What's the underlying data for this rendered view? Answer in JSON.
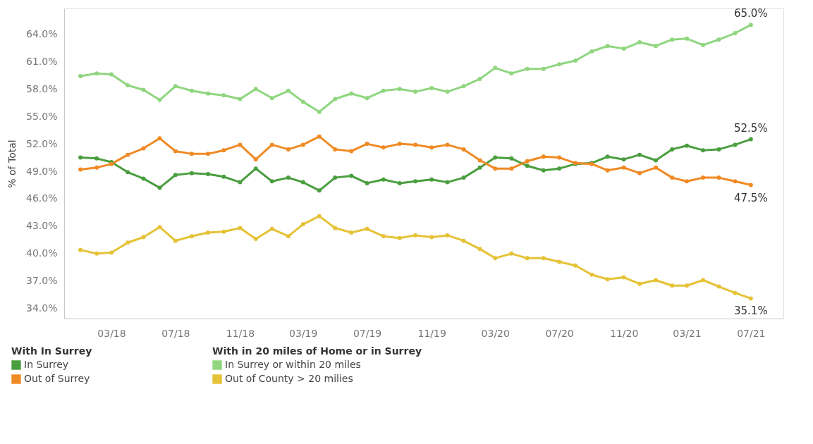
{
  "chart_data": {
    "type": "line",
    "ylabel": "% of Total",
    "legend_title": [
      "With In Surrey",
      "With in 20 miles of Home or in Surrey"
    ],
    "x": [
      "2018-01",
      "2018-02",
      "2018-03",
      "2018-04",
      "2018-05",
      "2018-06",
      "2018-07",
      "2018-08",
      "2018-09",
      "2018-10",
      "2018-11",
      "2018-12",
      "2019-01",
      "2019-02",
      "2019-03",
      "2019-04",
      "2019-05",
      "2019-06",
      "2019-07",
      "2019-08",
      "2019-09",
      "2019-10",
      "2019-11",
      "2019-12",
      "2020-01",
      "2020-02",
      "2020-03",
      "2020-04",
      "2020-05",
      "2020-06",
      "2020-07",
      "2020-08",
      "2020-09",
      "2020-10",
      "2020-11",
      "2020-12",
      "2021-01",
      "2021-02",
      "2021-03",
      "2021-04",
      "2021-05",
      "2021-06",
      "2021-07"
    ],
    "series": [
      {
        "name": "In Surrey",
        "color": "#4a9e3f",
        "values": [
          50.5,
          50.4,
          50.0,
          48.9,
          48.2,
          47.2,
          48.6,
          48.8,
          48.7,
          48.4,
          47.8,
          49.3,
          47.9,
          48.3,
          47.8,
          46.9,
          48.3,
          48.5,
          47.7,
          48.1,
          47.7,
          47.9,
          48.1,
          47.8,
          48.3,
          49.4,
          50.5,
          50.4,
          49.6,
          49.1,
          49.3,
          49.8,
          49.9,
          50.6,
          50.3,
          50.8,
          50.2,
          51.4,
          51.8,
          51.3,
          51.4,
          51.9,
          52.5
        ],
        "value_labels": [
          null,
          null,
          null,
          null,
          null,
          null,
          null,
          null,
          null,
          null,
          null,
          null,
          null,
          null,
          null,
          null,
          null,
          null,
          null,
          null,
          null,
          null,
          null,
          null,
          null,
          null,
          null,
          null,
          null,
          null,
          null,
          null,
          null,
          null,
          null,
          null,
          null,
          null,
          null,
          null,
          null,
          null,
          "52.5%"
        ]
      },
      {
        "name": "Out of Surrey",
        "color": "#f08a24",
        "values": [
          49.2,
          49.4,
          49.8,
          50.8,
          51.5,
          52.6,
          51.2,
          50.9,
          50.9,
          51.3,
          51.9,
          50.3,
          51.9,
          51.4,
          51.9,
          52.8,
          51.4,
          51.2,
          52.0,
          51.6,
          52.0,
          51.9,
          51.6,
          51.9,
          51.4,
          50.2,
          49.3,
          49.3,
          50.1,
          50.6,
          50.5,
          49.9,
          49.8,
          49.1,
          49.4,
          48.8,
          49.4,
          48.3,
          47.9,
          48.3,
          48.3,
          47.9,
          47.5
        ],
        "value_labels": [
          null,
          null,
          null,
          null,
          null,
          null,
          null,
          null,
          null,
          null,
          null,
          null,
          null,
          null,
          null,
          null,
          null,
          null,
          null,
          null,
          null,
          null,
          null,
          null,
          null,
          null,
          null,
          null,
          null,
          null,
          null,
          null,
          null,
          null,
          null,
          null,
          null,
          null,
          null,
          null,
          null,
          null,
          "47.5%"
        ]
      },
      {
        "name": "In Surrey or within 20 miles",
        "color": "#8fd67f",
        "values": [
          59.4,
          59.7,
          59.6,
          58.4,
          57.9,
          56.8,
          58.3,
          57.8,
          57.5,
          57.3,
          56.9,
          58.0,
          57.0,
          57.8,
          56.6,
          55.5,
          56.9,
          57.5,
          57.0,
          57.8,
          58.0,
          57.7,
          58.1,
          57.7,
          58.3,
          59.1,
          60.3,
          59.7,
          60.2,
          60.2,
          60.7,
          61.1,
          62.1,
          62.7,
          62.4,
          63.1,
          62.7,
          63.4,
          63.5,
          62.8,
          63.4,
          64.1,
          65.0
        ],
        "value_labels": [
          null,
          null,
          null,
          null,
          null,
          null,
          null,
          null,
          null,
          null,
          null,
          null,
          null,
          null,
          null,
          null,
          null,
          null,
          null,
          null,
          null,
          null,
          null,
          null,
          null,
          null,
          null,
          null,
          null,
          null,
          null,
          null,
          null,
          null,
          null,
          null,
          null,
          null,
          null,
          null,
          null,
          null,
          "65.0%"
        ]
      },
      {
        "name": "Out of County > 20 milies",
        "color": "#e5c236",
        "values": [
          40.4,
          40.0,
          40.1,
          41.2,
          41.8,
          42.9,
          41.4,
          41.9,
          42.3,
          42.4,
          42.8,
          41.6,
          42.7,
          41.9,
          43.2,
          44.1,
          42.8,
          42.3,
          42.7,
          41.9,
          41.7,
          42.0,
          41.8,
          42.0,
          41.4,
          40.5,
          39.5,
          40.0,
          39.5,
          39.5,
          39.1,
          38.7,
          37.7,
          37.2,
          37.4,
          36.7,
          37.1,
          36.5,
          36.5,
          37.1,
          36.4,
          35.7,
          35.1
        ],
        "value_labels": [
          null,
          null,
          null,
          null,
          null,
          null,
          null,
          null,
          null,
          null,
          null,
          null,
          null,
          null,
          null,
          null,
          null,
          null,
          null,
          null,
          null,
          null,
          null,
          null,
          null,
          null,
          null,
          null,
          null,
          null,
          null,
          null,
          null,
          null,
          null,
          null,
          null,
          null,
          null,
          null,
          null,
          null,
          "35.1%"
        ]
      }
    ],
    "xlim": [
      "2017-12",
      "2021-09"
    ],
    "xticks": [
      {
        "value": "2018-03",
        "label": "03/18"
      },
      {
        "value": "2018-07",
        "label": "07/18"
      },
      {
        "value": "2018-11",
        "label": "11/18"
      },
      {
        "value": "2019-03",
        "label": "03/19"
      },
      {
        "value": "2019-07",
        "label": "07/19"
      },
      {
        "value": "2019-11",
        "label": "11/19"
      },
      {
        "value": "2020-03",
        "label": "03/20"
      },
      {
        "value": "2020-07",
        "label": "07/20"
      },
      {
        "value": "2020-11",
        "label": "11/20"
      },
      {
        "value": "2021-03",
        "label": "03/21"
      },
      {
        "value": "2021-07",
        "label": "07/21"
      }
    ],
    "ylim": [
      32.9,
      66.8
    ],
    "yticks": [
      {
        "value": 34,
        "label": "34.0%"
      },
      {
        "value": 37,
        "label": "37.0%"
      },
      {
        "value": 40,
        "label": "40.0%"
      },
      {
        "value": 43,
        "label": "43.0%"
      },
      {
        "value": 46,
        "label": "46.0%"
      },
      {
        "value": 49,
        "label": "49.0%"
      },
      {
        "value": 52,
        "label": "52.0%"
      },
      {
        "value": 55,
        "label": "55.0%"
      },
      {
        "value": 58,
        "label": "58.0%"
      },
      {
        "value": 61,
        "label": "61.0%"
      },
      {
        "value": 64,
        "label": "64.0%"
      }
    ],
    "grid": false,
    "legend": "bottom",
    "marker": "circle",
    "line_style": "solid"
  }
}
